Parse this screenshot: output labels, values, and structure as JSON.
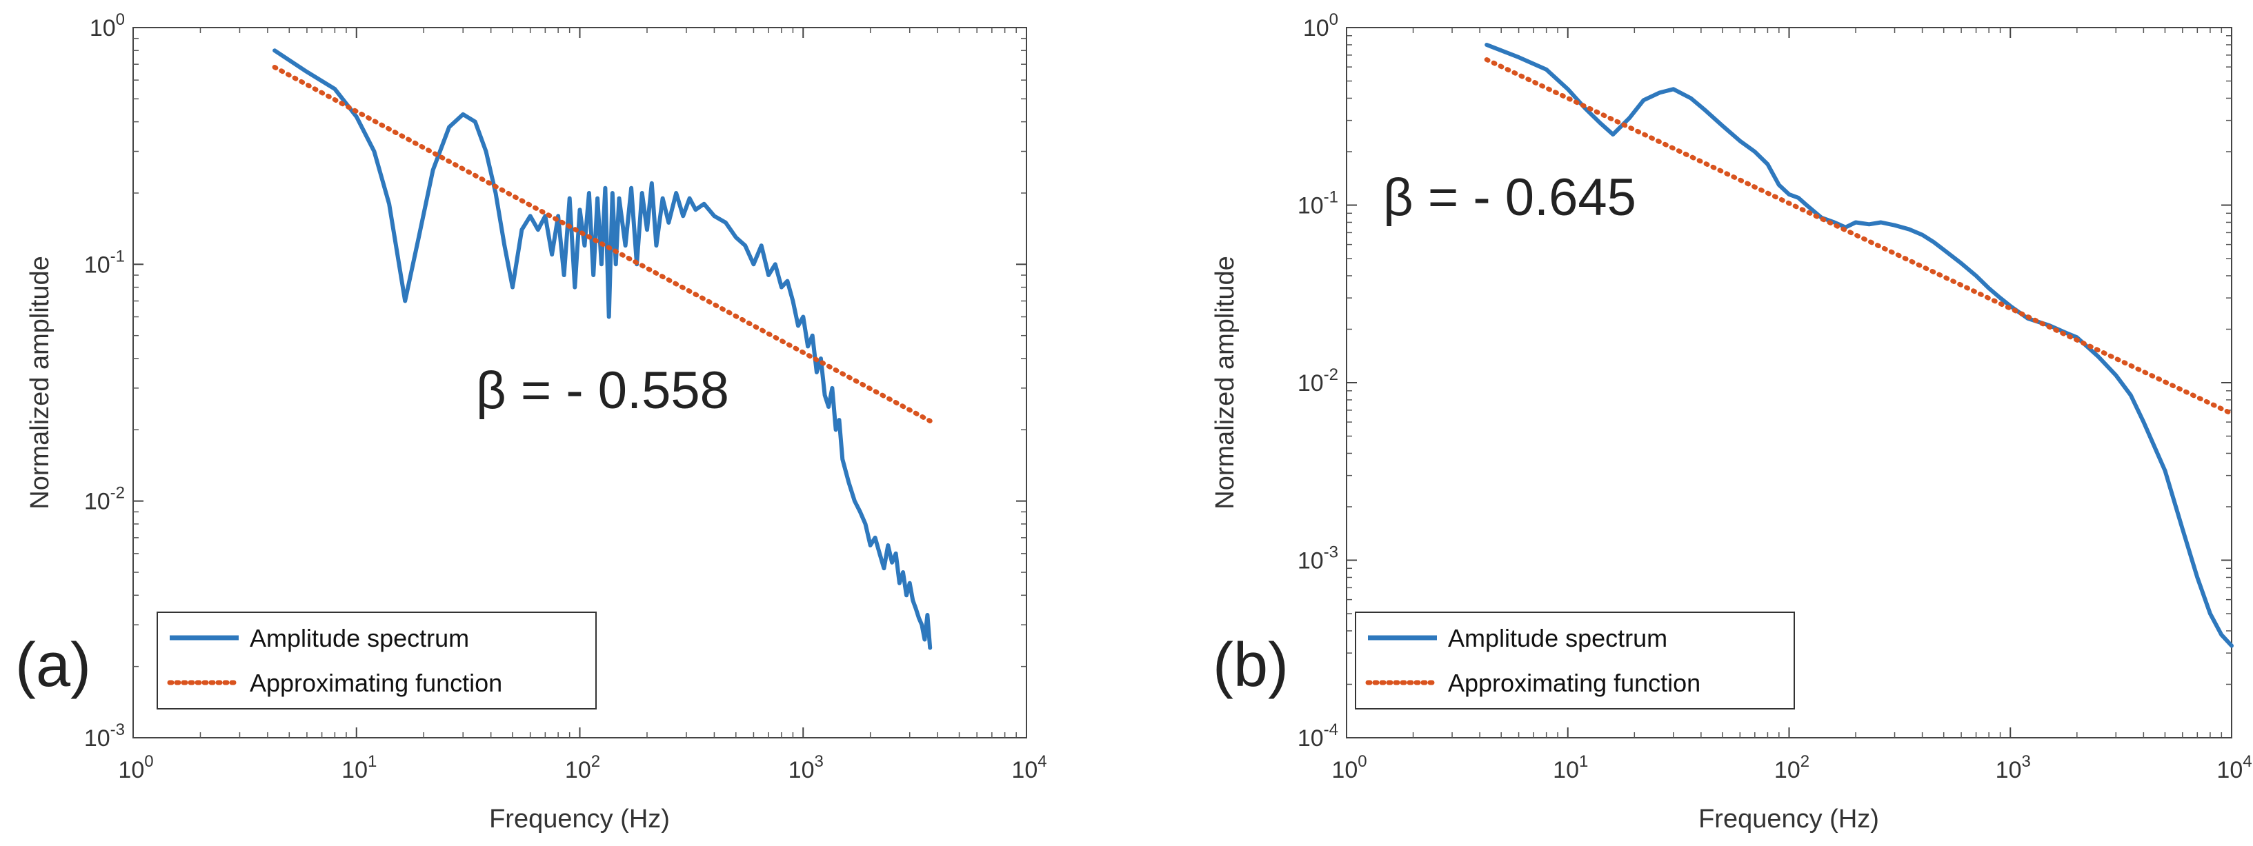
{
  "chart_data": [
    {
      "type": "line",
      "panel_label": "(a)",
      "xscale": "log",
      "yscale": "log",
      "xlim": [
        1,
        10000
      ],
      "ylim": [
        0.001,
        1
      ],
      "xlabel": "Frequency (Hz)",
      "ylabel": "Normalized amplitude",
      "x_ticks": [
        {
          "base": "10",
          "exp": "0"
        },
        {
          "base": "10",
          "exp": "1"
        },
        {
          "base": "10",
          "exp": "2"
        },
        {
          "base": "10",
          "exp": "3"
        },
        {
          "base": "10",
          "exp": "4"
        }
      ],
      "y_ticks": [
        {
          "base": "10",
          "exp": "-3"
        },
        {
          "base": "10",
          "exp": "-2"
        },
        {
          "base": "10",
          "exp": "-1"
        },
        {
          "base": "10",
          "exp": "0"
        }
      ],
      "annotation": "β = - 0.558",
      "legend": {
        "position": "bottom-left",
        "entries": [
          "Amplitude spectrum",
          "Approximating function"
        ]
      },
      "series": [
        {
          "name": "Amplitude spectrum",
          "color": "#2E78BD",
          "style": "solid",
          "x": [
            4.3,
            6,
            8,
            10,
            12,
            14,
            16.5,
            19,
            22,
            26,
            30,
            34,
            38,
            42,
            46,
            50,
            55,
            60,
            65,
            70,
            75,
            80,
            85,
            90,
            95,
            100,
            105,
            110,
            115,
            120,
            125,
            130,
            135,
            140,
            145,
            150,
            160,
            170,
            180,
            190,
            200,
            210,
            220,
            235,
            250,
            270,
            290,
            310,
            330,
            360,
            400,
            450,
            500,
            550,
            600,
            650,
            700,
            750,
            800,
            850,
            900,
            950,
            1000,
            1050,
            1100,
            1150,
            1200,
            1250,
            1300,
            1350,
            1400,
            1450,
            1500,
            1600,
            1700,
            1800,
            1900,
            2000,
            2100,
            2200,
            2300,
            2400,
            2500,
            2600,
            2700,
            2800,
            2900,
            3000,
            3100,
            3200,
            3300,
            3400,
            3500,
            3600,
            3700
          ],
          "y": [
            0.8,
            0.65,
            0.55,
            0.42,
            0.3,
            0.18,
            0.07,
            0.13,
            0.25,
            0.38,
            0.43,
            0.4,
            0.3,
            0.2,
            0.12,
            0.08,
            0.14,
            0.16,
            0.14,
            0.16,
            0.11,
            0.16,
            0.09,
            0.19,
            0.08,
            0.17,
            0.12,
            0.2,
            0.09,
            0.19,
            0.1,
            0.21,
            0.06,
            0.2,
            0.1,
            0.19,
            0.12,
            0.21,
            0.1,
            0.2,
            0.14,
            0.22,
            0.12,
            0.19,
            0.15,
            0.2,
            0.16,
            0.19,
            0.17,
            0.18,
            0.16,
            0.15,
            0.13,
            0.12,
            0.1,
            0.12,
            0.09,
            0.1,
            0.08,
            0.085,
            0.07,
            0.055,
            0.06,
            0.045,
            0.05,
            0.035,
            0.04,
            0.028,
            0.025,
            0.03,
            0.02,
            0.022,
            0.015,
            0.012,
            0.01,
            0.009,
            0.008,
            0.0065,
            0.007,
            0.006,
            0.0052,
            0.0065,
            0.0055,
            0.006,
            0.0045,
            0.005,
            0.004,
            0.0045,
            0.0038,
            0.0035,
            0.0032,
            0.003,
            0.0026,
            0.0033,
            0.0024
          ]
        },
        {
          "name": "Approximating function",
          "color": "#D9531E",
          "style": "dotted",
          "x": [
            4.3,
            3700
          ],
          "y": [
            0.68,
            0.0218
          ]
        }
      ]
    },
    {
      "type": "line",
      "panel_label": "(b)",
      "xscale": "log",
      "yscale": "log",
      "xlim": [
        1,
        10000
      ],
      "ylim": [
        0.0001,
        1
      ],
      "xlabel": "Frequency (Hz)",
      "ylabel": "Normalized amplitude",
      "x_ticks": [
        {
          "base": "10",
          "exp": "0"
        },
        {
          "base": "10",
          "exp": "1"
        },
        {
          "base": "10",
          "exp": "2"
        },
        {
          "base": "10",
          "exp": "3"
        },
        {
          "base": "10",
          "exp": "4"
        }
      ],
      "y_ticks": [
        {
          "base": "10",
          "exp": "-4"
        },
        {
          "base": "10",
          "exp": "-3"
        },
        {
          "base": "10",
          "exp": "-2"
        },
        {
          "base": "10",
          "exp": "-1"
        },
        {
          "base": "10",
          "exp": "0"
        }
      ],
      "annotation": "β = - 0.645",
      "legend": {
        "position": "bottom-left",
        "entries": [
          "Amplitude spectrum",
          "Approximating function"
        ]
      },
      "series": [
        {
          "name": "Amplitude spectrum",
          "color": "#2E78BD",
          "style": "solid",
          "x": [
            4.3,
            6,
            8,
            10,
            12,
            14,
            16,
            19,
            22,
            26,
            30,
            36,
            42,
            50,
            60,
            70,
            80,
            90,
            100,
            110,
            120,
            140,
            160,
            180,
            200,
            230,
            260,
            300,
            350,
            400,
            450,
            500,
            600,
            700,
            800,
            900,
            1000,
            1200,
            1500,
            1800,
            2000,
            2500,
            3000,
            3500,
            4000,
            5000,
            6000,
            7000,
            8000,
            9000,
            10000
          ],
          "y": [
            0.8,
            0.68,
            0.58,
            0.45,
            0.35,
            0.29,
            0.25,
            0.31,
            0.39,
            0.43,
            0.45,
            0.4,
            0.34,
            0.28,
            0.23,
            0.2,
            0.17,
            0.13,
            0.115,
            0.11,
            0.1,
            0.085,
            0.08,
            0.075,
            0.08,
            0.078,
            0.08,
            0.077,
            0.073,
            0.068,
            0.062,
            0.056,
            0.047,
            0.04,
            0.034,
            0.03,
            0.027,
            0.023,
            0.021,
            0.019,
            0.018,
            0.014,
            0.011,
            0.0085,
            0.006,
            0.0032,
            0.0015,
            0.0008,
            0.0005,
            0.00038,
            0.00033
          ]
        },
        {
          "name": "Approximating function",
          "color": "#D9531E",
          "style": "dotted",
          "x": [
            4.3,
            10000
          ],
          "y": [
            0.66,
            0.0067
          ]
        }
      ]
    }
  ]
}
